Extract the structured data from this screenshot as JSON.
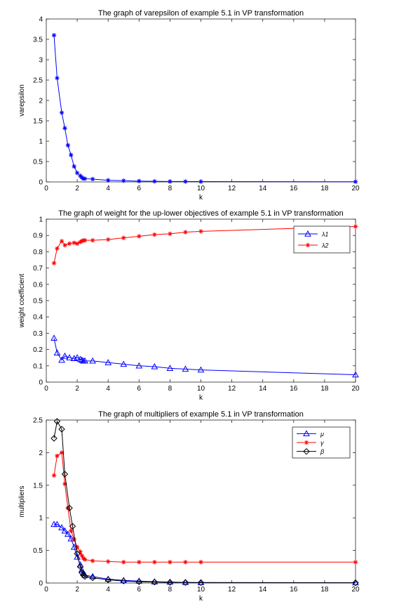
{
  "chart_data": [
    {
      "type": "line",
      "title": "The graph of varepsilon of example 5.1 in VP transformation",
      "xlabel": "k",
      "ylabel": "varepsilon",
      "xlim": [
        0,
        20
      ],
      "ylim": [
        0,
        4
      ],
      "xticks": [
        0,
        2,
        4,
        6,
        8,
        10,
        12,
        14,
        16,
        18,
        20
      ],
      "yticks": [
        0,
        0.5,
        1,
        1.5,
        2,
        2.5,
        3,
        3.5,
        4
      ],
      "legend": "none",
      "series": [
        {
          "color": "#0000ff",
          "marker": "asterisk",
          "x": [
            0.5,
            0.7,
            1.0,
            1.2,
            1.4,
            1.6,
            1.8,
            2.0,
            2.2,
            2.3,
            2.4,
            2.5,
            3,
            4,
            5,
            6,
            7,
            8,
            9,
            10,
            20
          ],
          "y": [
            3.6,
            2.55,
            1.7,
            1.32,
            0.9,
            0.66,
            0.38,
            0.22,
            0.15,
            0.11,
            0.08,
            0.08,
            0.07,
            0.04,
            0.03,
            0.02,
            0.015,
            0.01,
            0.01,
            0.008,
            0.005
          ]
        }
      ]
    },
    {
      "type": "line",
      "title": "The graph of weight for the up-lower objectives of example 5.1 in VP transformation",
      "xlabel": "k",
      "ylabel": "weight coefficient",
      "xlim": [
        0,
        20
      ],
      "ylim": [
        0,
        1
      ],
      "xticks": [
        0,
        2,
        4,
        6,
        8,
        10,
        12,
        14,
        16,
        18,
        20
      ],
      "yticks": [
        0,
        0.1,
        0.2,
        0.3,
        0.4,
        0.5,
        0.6,
        0.7,
        0.8,
        0.9,
        1
      ],
      "legend": "top-right",
      "series": [
        {
          "name": "λ1",
          "color": "#0000ff",
          "marker": "triangle",
          "x": [
            0.5,
            0.7,
            1.0,
            1.2,
            1.5,
            1.8,
            2.0,
            2.2,
            2.3,
            2.4,
            2.5,
            3,
            4,
            5,
            6,
            7,
            8,
            9,
            10,
            20
          ],
          "y": [
            0.27,
            0.18,
            0.135,
            0.16,
            0.15,
            0.145,
            0.15,
            0.14,
            0.135,
            0.13,
            0.13,
            0.13,
            0.12,
            0.11,
            0.1,
            0.095,
            0.085,
            0.08,
            0.075,
            0.045
          ]
        },
        {
          "name": "λ2",
          "color": "#ff0000",
          "marker": "asterisk",
          "x": [
            0.5,
            0.7,
            1.0,
            1.2,
            1.5,
            1.8,
            2.0,
            2.2,
            2.3,
            2.4,
            2.5,
            3,
            4,
            5,
            6,
            7,
            8,
            9,
            10,
            20
          ],
          "y": [
            0.73,
            0.82,
            0.865,
            0.84,
            0.85,
            0.855,
            0.85,
            0.86,
            0.865,
            0.87,
            0.87,
            0.87,
            0.875,
            0.885,
            0.895,
            0.905,
            0.91,
            0.92,
            0.925,
            0.955
          ]
        }
      ]
    },
    {
      "type": "line",
      "title": "The graph of multipliers of example 5.1 in VP transformation",
      "xlabel": "k",
      "ylabel": "multipliers",
      "xlim": [
        0,
        20
      ],
      "ylim": [
        0,
        2.5
      ],
      "xticks": [
        0,
        2,
        4,
        6,
        8,
        10,
        12,
        14,
        16,
        18,
        20
      ],
      "yticks": [
        0,
        0.5,
        1,
        1.5,
        2,
        2.5
      ],
      "legend": "top-right",
      "series": [
        {
          "name": "μ",
          "color": "#0000ff",
          "marker": "triangle",
          "x": [
            0.5,
            0.7,
            1.0,
            1.2,
            1.4,
            1.6,
            1.8,
            2.0,
            2.2,
            2.3,
            2.4,
            2.5,
            3,
            4,
            5,
            6,
            7,
            8,
            9,
            10,
            20
          ],
          "y": [
            0.9,
            0.9,
            0.85,
            0.8,
            0.75,
            0.68,
            0.55,
            0.4,
            0.28,
            0.2,
            0.15,
            0.12,
            0.1,
            0.06,
            0.04,
            0.03,
            0.02,
            0.015,
            0.01,
            0.008,
            0.005
          ]
        },
        {
          "name": "γ",
          "color": "#ff0000",
          "marker": "asterisk",
          "x": [
            0.5,
            0.7,
            1.0,
            1.2,
            1.4,
            1.6,
            1.8,
            2.0,
            2.2,
            2.3,
            2.4,
            2.5,
            3,
            4,
            5,
            6,
            7,
            8,
            9,
            10,
            20
          ],
          "y": [
            1.65,
            1.95,
            2.0,
            1.52,
            1.15,
            0.8,
            0.67,
            0.55,
            0.48,
            0.42,
            0.38,
            0.36,
            0.34,
            0.33,
            0.32,
            0.32,
            0.32,
            0.32,
            0.32,
            0.32,
            0.32
          ]
        },
        {
          "name": "β",
          "color": "#000000",
          "marker": "diamond",
          "x": [
            0.5,
            0.7,
            1.0,
            1.2,
            1.5,
            1.7,
            2.0,
            2.2,
            2.3,
            2.4,
            2.5,
            3,
            4,
            5,
            6,
            7,
            8,
            9,
            10,
            20
          ],
          "y": [
            2.22,
            2.48,
            2.36,
            1.67,
            1.15,
            0.87,
            0.45,
            0.25,
            0.16,
            0.12,
            0.1,
            0.08,
            0.05,
            0.03,
            0.02,
            0.015,
            0.01,
            0.008,
            0.006,
            0.004
          ]
        }
      ]
    }
  ]
}
